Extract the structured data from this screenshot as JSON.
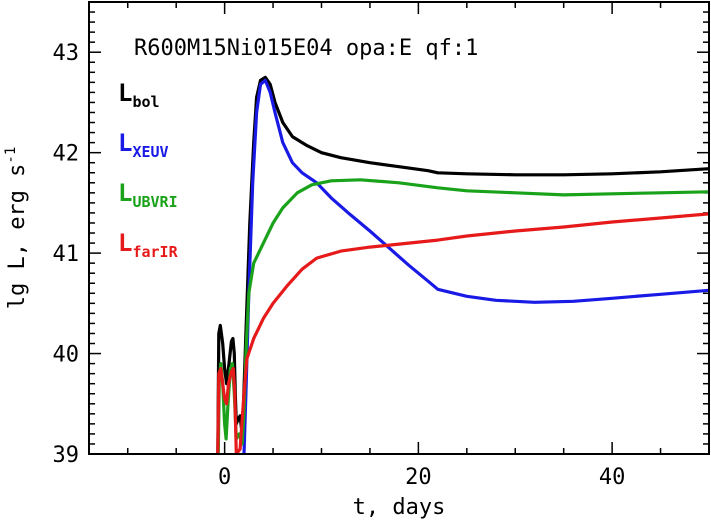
{
  "chart_data": {
    "type": "line",
    "title": "R600M15Ni015E04 opa:E qf:1",
    "xlabel": "t, days",
    "ylabel_main": "lg L, erg s",
    "ylabel_exp": "-1",
    "xlim": [
      -14,
      50
    ],
    "ylim": [
      39,
      43.5
    ],
    "x_ticks": [
      0,
      20,
      40
    ],
    "y_ticks": [
      39,
      40,
      41,
      42,
      43
    ],
    "x_tick_labels": [
      "0",
      "20",
      "40"
    ],
    "y_tick_labels": [
      "39",
      "40",
      "41",
      "42",
      "43"
    ],
    "grid": false,
    "legend_position": "top-left",
    "series": [
      {
        "name_main": "L",
        "name_sub": "bol",
        "color": "#000000",
        "points": [
          [
            -0.7,
            39.0
          ],
          [
            -0.6,
            40.2
          ],
          [
            -0.45,
            40.28
          ],
          [
            -0.2,
            40.1
          ],
          [
            0.0,
            39.85
          ],
          [
            0.2,
            39.7
          ],
          [
            0.45,
            39.9
          ],
          [
            0.7,
            40.12
          ],
          [
            0.85,
            40.15
          ],
          [
            1.0,
            40.0
          ],
          [
            1.1,
            39.6
          ],
          [
            1.2,
            39.3
          ],
          [
            1.4,
            39.35
          ],
          [
            1.6,
            39.38
          ],
          [
            1.8,
            39.2
          ],
          [
            1.95,
            39.5
          ],
          [
            2.2,
            40.2
          ],
          [
            2.6,
            41.3
          ],
          [
            3.0,
            42.1
          ],
          [
            3.3,
            42.55
          ],
          [
            3.7,
            42.72
          ],
          [
            4.2,
            42.75
          ],
          [
            4.7,
            42.68
          ],
          [
            5.2,
            42.5
          ],
          [
            6.0,
            42.3
          ],
          [
            7.0,
            42.16
          ],
          [
            8.5,
            42.07
          ],
          [
            10,
            42.0
          ],
          [
            12,
            41.95
          ],
          [
            15,
            41.9
          ],
          [
            18,
            41.86
          ],
          [
            21,
            41.82
          ],
          [
            22,
            41.8
          ],
          [
            25,
            41.79
          ],
          [
            30,
            41.78
          ],
          [
            35,
            41.78
          ],
          [
            40,
            41.79
          ],
          [
            45,
            41.81
          ],
          [
            50,
            41.84
          ]
        ]
      },
      {
        "name_main": "L",
        "name_sub": "XEUV",
        "color": "#1a1ae6",
        "points": [
          [
            2.0,
            39.0
          ],
          [
            2.2,
            39.6
          ],
          [
            2.5,
            40.6
          ],
          [
            2.9,
            41.7
          ],
          [
            3.3,
            42.4
          ],
          [
            3.7,
            42.68
          ],
          [
            4.2,
            42.72
          ],
          [
            4.7,
            42.6
          ],
          [
            5.2,
            42.4
          ],
          [
            6.0,
            42.1
          ],
          [
            7.0,
            41.9
          ],
          [
            8.0,
            41.8
          ],
          [
            9.5,
            41.7
          ],
          [
            11,
            41.55
          ],
          [
            13,
            41.38
          ],
          [
            15,
            41.22
          ],
          [
            17,
            41.05
          ],
          [
            19,
            40.88
          ],
          [
            21,
            40.72
          ],
          [
            22,
            40.64
          ],
          [
            25,
            40.57
          ],
          [
            28,
            40.53
          ],
          [
            32,
            40.51
          ],
          [
            36,
            40.52
          ],
          [
            40,
            40.55
          ],
          [
            45,
            40.59
          ],
          [
            50,
            40.63
          ]
        ]
      },
      {
        "name_main": "L",
        "name_sub": "UBVRI",
        "color": "#1aa31a",
        "points": [
          [
            -0.65,
            39.0
          ],
          [
            -0.55,
            39.75
          ],
          [
            -0.4,
            39.9
          ],
          [
            -0.2,
            39.7
          ],
          [
            0.0,
            39.3
          ],
          [
            0.15,
            39.15
          ],
          [
            0.35,
            39.5
          ],
          [
            0.6,
            39.85
          ],
          [
            0.8,
            39.9
          ],
          [
            1.0,
            39.6
          ],
          [
            1.2,
            39.15
          ],
          [
            1.5,
            39.2
          ],
          [
            1.8,
            39.1
          ],
          [
            2.0,
            39.4
          ],
          [
            2.2,
            40.0
          ],
          [
            2.5,
            40.6
          ],
          [
            3.0,
            40.9
          ],
          [
            4.0,
            41.1
          ],
          [
            5.0,
            41.3
          ],
          [
            6.0,
            41.45
          ],
          [
            7.5,
            41.6
          ],
          [
            9.0,
            41.68
          ],
          [
            11,
            41.72
          ],
          [
            14,
            41.73
          ],
          [
            18,
            41.7
          ],
          [
            22,
            41.65
          ],
          [
            25,
            41.62
          ],
          [
            30,
            41.6
          ],
          [
            35,
            41.58
          ],
          [
            40,
            41.59
          ],
          [
            45,
            41.6
          ],
          [
            50,
            41.61
          ]
        ]
      },
      {
        "name_main": "L",
        "name_sub": "farIR",
        "color": "#e61a1a",
        "points": [
          [
            -0.7,
            39.0
          ],
          [
            -0.6,
            39.8
          ],
          [
            -0.4,
            39.85
          ],
          [
            -0.2,
            39.7
          ],
          [
            0.0,
            39.55
          ],
          [
            0.2,
            39.5
          ],
          [
            0.4,
            39.7
          ],
          [
            0.7,
            39.82
          ],
          [
            0.9,
            39.85
          ],
          [
            1.05,
            39.6
          ],
          [
            1.2,
            39.0
          ],
          [
            1.6,
            39.05
          ],
          [
            2.0,
            39.6
          ],
          [
            2.3,
            39.95
          ],
          [
            3.0,
            40.15
          ],
          [
            4.0,
            40.35
          ],
          [
            5.0,
            40.5
          ],
          [
            6.5,
            40.68
          ],
          [
            8.0,
            40.84
          ],
          [
            9.5,
            40.95
          ],
          [
            12,
            41.02
          ],
          [
            15,
            41.06
          ],
          [
            18,
            41.09
          ],
          [
            20,
            41.11
          ],
          [
            22,
            41.13
          ],
          [
            25,
            41.17
          ],
          [
            30,
            41.22
          ],
          [
            35,
            41.26
          ],
          [
            40,
            41.31
          ],
          [
            45,
            41.35
          ],
          [
            50,
            41.39
          ]
        ]
      }
    ]
  }
}
